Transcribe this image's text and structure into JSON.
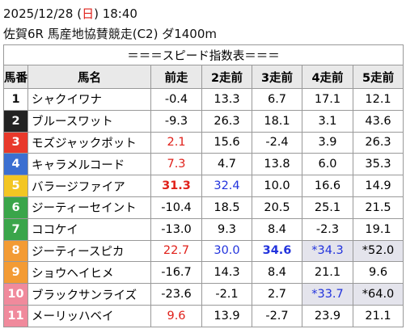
{
  "header": {
    "date": "2025/12/28 (",
    "weekday": "日",
    "time": ") 18:40",
    "race": "佐賀6R 馬産地協賛競走(C2) ダ1400m"
  },
  "table": {
    "title": "＝＝＝スピード指数表＝＝＝",
    "columns": [
      "馬番",
      "馬名",
      "前走",
      "2走前",
      "3走前",
      "4走前",
      "5走前"
    ],
    "rows": [
      {
        "number": "1",
        "frame_color": "#ffffff",
        "name": "シャクイワナ",
        "scores": [
          "-0.4",
          "13.3",
          "6.7",
          "17.1",
          "12.1"
        ]
      },
      {
        "number": "2",
        "frame_color": "#222222",
        "name": "ブルースワット",
        "scores": [
          "-9.3",
          "26.3",
          "18.1",
          "3.1",
          "43.6"
        ]
      },
      {
        "number": "3",
        "frame_color": "#e8392b",
        "name": "モズジャックポット",
        "scores": [
          {
            "text": "2.1",
            "color": "red"
          },
          "15.6",
          "-2.4",
          "3.9",
          "26.3"
        ]
      },
      {
        "number": "4",
        "frame_color": "#3b6fd1",
        "name": "キャラメルコード",
        "scores": [
          {
            "text": "7.3",
            "color": "red"
          },
          "4.7",
          "13.8",
          "6.0",
          "35.3"
        ]
      },
      {
        "number": "5",
        "frame_color": "#f3c623",
        "name": "バラージファイア",
        "scores": [
          {
            "text": "31.3",
            "color": "red",
            "bold": true
          },
          {
            "text": "32.4",
            "color": "blue"
          },
          "10.0",
          "16.6",
          "14.9"
        ]
      },
      {
        "number": "6",
        "frame_color": "#3aa54a",
        "name": "ジーティーセイント",
        "scores": [
          "-10.4",
          "18.5",
          "20.5",
          "25.1",
          "21.5"
        ]
      },
      {
        "number": "7",
        "frame_color": "#3aa54a",
        "name": "ココケイ",
        "scores": [
          "-13.0",
          "9.3",
          "8.4",
          "-2.3",
          "19.1"
        ]
      },
      {
        "number": "8",
        "frame_color": "#f39b34",
        "name": "ジーティースピカ",
        "scores": [
          {
            "text": "22.7",
            "color": "red"
          },
          {
            "text": "30.0",
            "color": "blue"
          },
          {
            "text": "34.6",
            "color": "blue",
            "bold": true
          },
          {
            "text": "*34.3",
            "color": "blue",
            "shaded": true
          },
          {
            "text": "*52.0",
            "shaded": true
          }
        ]
      },
      {
        "number": "9",
        "frame_color": "#f39b34",
        "name": "ショウヘイヒメ",
        "scores": [
          "-16.7",
          "14.3",
          "8.4",
          "21.1",
          "9.6"
        ]
      },
      {
        "number": "10",
        "frame_color": "#f08a9c",
        "name": "ブラックサンライズ",
        "scores": [
          "-23.6",
          "-2.1",
          "2.7",
          {
            "text": "*33.7",
            "color": "blue",
            "shaded": true
          },
          {
            "text": "*64.0",
            "shaded": true
          }
        ]
      },
      {
        "number": "11",
        "frame_color": "#f08a9c",
        "name": "メーリッハベイ",
        "scores": [
          {
            "text": "9.6",
            "color": "red"
          },
          "13.9",
          "-2.7",
          "23.9",
          "21.1"
        ]
      }
    ]
  }
}
